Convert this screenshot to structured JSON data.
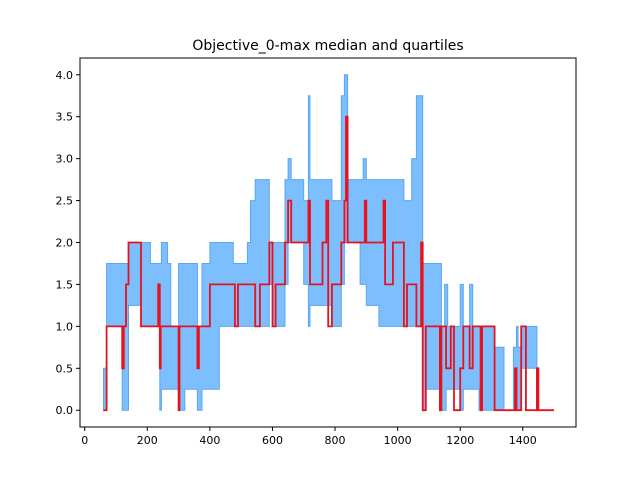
{
  "chart_data": {
    "type": "area",
    "title": "Objective_0-max median and quartiles",
    "xlabel": "",
    "ylabel": "",
    "xlim": [
      -15,
      1570
    ],
    "ylim": [
      -0.2,
      4.2
    ],
    "xticks": [
      0,
      200,
      400,
      600,
      800,
      1000,
      1200,
      1400
    ],
    "yticks": [
      0.0,
      0.5,
      1.0,
      1.5,
      2.0,
      2.5,
      3.0,
      3.5,
      4.0
    ],
    "ytick_labels": [
      "0.0",
      "0.5",
      "1.0",
      "1.5",
      "2.0",
      "2.5",
      "3.0",
      "3.5",
      "4.0"
    ],
    "grid": false,
    "colors": {
      "median": "#e8121c",
      "quartile_band": "#66b3ff",
      "quartile_edge": "#5aa7f0"
    },
    "series": [
      {
        "role": "median",
        "x": [
          60,
          70,
          120,
          125,
          132,
          140,
          180,
          220,
          235,
          240,
          243,
          250,
          255,
          300,
          303,
          310,
          360,
          365,
          375,
          400,
          480,
          490,
          545,
          560,
          570,
          590,
          600,
          610,
          640,
          650,
          660,
          715,
          720,
          760,
          772,
          778,
          790,
          820,
          830,
          835,
          840,
          845,
          895,
          900,
          940,
          955,
          960,
          985,
          1010,
          1020,
          1030,
          1040,
          1060,
          1075,
          1080,
          1090,
          1130,
          1135,
          1140,
          1150,
          1155,
          1170,
          1180,
          1200,
          1210,
          1230,
          1240,
          1260,
          1265,
          1270,
          1290,
          1310,
          1340,
          1370,
          1375,
          1380,
          1395,
          1410,
          1445,
          1450,
          1500
        ],
        "y": [
          0.0,
          1.0,
          0.5,
          1.0,
          1.5,
          2.0,
          1.0,
          1.0,
          1.5,
          0.5,
          1.0,
          1.0,
          1.0,
          0.0,
          1.0,
          1.0,
          0.5,
          1.0,
          1.0,
          1.5,
          1.0,
          1.5,
          1.0,
          1.5,
          1.5,
          2.0,
          1.0,
          1.5,
          2.0,
          2.5,
          2.0,
          2.5,
          1.5,
          2.0,
          2.5,
          1.0,
          1.5,
          2.0,
          2.5,
          3.5,
          2.0,
          2.0,
          2.5,
          2.0,
          2.0,
          2.5,
          1.5,
          2.0,
          2.0,
          1.0,
          1.5,
          1.5,
          1.0,
          2.0,
          0.0,
          1.0,
          1.0,
          0.0,
          1.0,
          1.0,
          0.5,
          1.0,
          0.0,
          0.5,
          1.0,
          0.5,
          1.0,
          1.0,
          0.0,
          1.0,
          1.0,
          0.0,
          0.0,
          0.0,
          0.5,
          0.0,
          1.0,
          0.0,
          0.5,
          0.0,
          0.0
        ]
      },
      {
        "role": "upper_quartile",
        "x": [
          60,
          70,
          120,
          140,
          180,
          210,
          245,
          265,
          275,
          300,
          320,
          360,
          375,
          400,
          450,
          475,
          520,
          530,
          545,
          560,
          590,
          600,
          640,
          650,
          660,
          680,
          700,
          715,
          720,
          730,
          760,
          790,
          820,
          830,
          840,
          845,
          880,
          890,
          900,
          930,
          960,
          985,
          1020,
          1045,
          1060,
          1075,
          1080,
          1120,
          1140,
          1150,
          1160,
          1170,
          1180,
          1200,
          1210,
          1230,
          1240,
          1260,
          1280,
          1310,
          1340,
          1370,
          1380,
          1385,
          1400,
          1445,
          1500
        ],
        "y": [
          0.5,
          1.75,
          1.75,
          2.0,
          2.0,
          1.75,
          2.0,
          1.75,
          1.0,
          1.75,
          1.75,
          1.0,
          1.75,
          2.0,
          2.0,
          1.75,
          2.0,
          2.5,
          2.75,
          2.75,
          2.0,
          2.0,
          2.75,
          3.0,
          2.75,
          2.75,
          2.5,
          3.75,
          2.75,
          2.75,
          2.75,
          2.5,
          3.75,
          4.0,
          2.75,
          2.75,
          2.75,
          3.0,
          2.75,
          2.75,
          2.75,
          2.75,
          2.5,
          3.0,
          3.75,
          3.75,
          1.75,
          1.75,
          1.0,
          1.5,
          1.0,
          1.0,
          1.0,
          1.5,
          1.0,
          1.5,
          1.0,
          1.0,
          1.0,
          0.75,
          0.0,
          0.75,
          1.0,
          0.75,
          1.0,
          0.0,
          0.0
        ]
      },
      {
        "role": "lower_quartile",
        "x": [
          60,
          70,
          120,
          140,
          180,
          235,
          240,
          245,
          250,
          300,
          320,
          360,
          375,
          430,
          480,
          545,
          590,
          600,
          640,
          650,
          700,
          715,
          720,
          760,
          790,
          820,
          830,
          840,
          880,
          900,
          940,
          1000,
          1020,
          1060,
          1075,
          1080,
          1090,
          1130,
          1140,
          1155,
          1180,
          1200,
          1210,
          1240,
          1260,
          1270,
          1310,
          1340,
          1370,
          1380,
          1395,
          1445,
          1500
        ],
        "y": [
          0.0,
          1.0,
          0.0,
          1.25,
          1.0,
          1.0,
          0.0,
          0.25,
          0.25,
          0.0,
          0.25,
          0.0,
          0.25,
          1.0,
          1.0,
          1.0,
          1.5,
          1.0,
          1.5,
          2.0,
          1.5,
          1.0,
          1.25,
          1.25,
          1.0,
          1.5,
          2.0,
          2.0,
          1.5,
          1.25,
          1.0,
          1.0,
          1.0,
          1.0,
          1.0,
          0.0,
          0.25,
          0.25,
          0.0,
          0.25,
          0.25,
          0.0,
          0.25,
          0.25,
          0.0,
          0.0,
          0.0,
          0.0,
          0.0,
          0.0,
          0.5,
          0.0,
          0.0
        ]
      }
    ]
  }
}
